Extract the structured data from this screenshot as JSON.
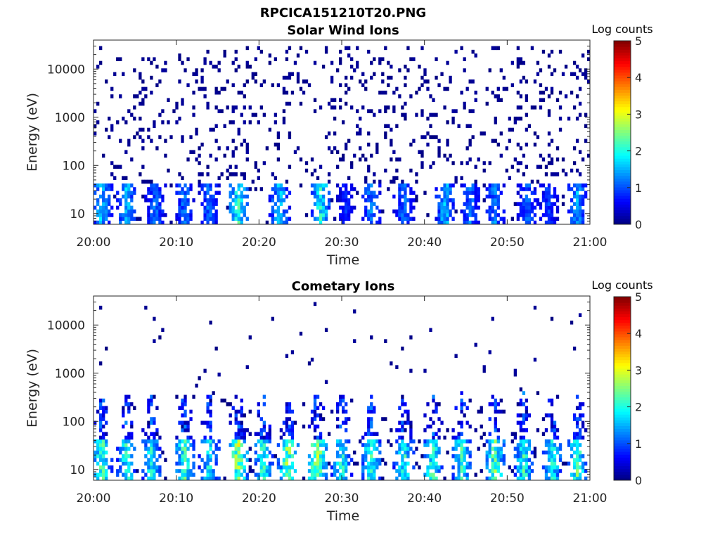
{
  "figure": {
    "title": "RPCICA151210T20.PNG"
  },
  "chart_data": [
    {
      "type": "heatmap",
      "title": "Solar Wind Ions",
      "xlabel": "Time",
      "ylabel": "Energy (eV)",
      "xlim": [
        "20:00",
        "21:00"
      ],
      "x_ticks": [
        "20:00",
        "20:10",
        "20:20",
        "20:30",
        "20:40",
        "20:50",
        "21:00"
      ],
      "y_scale": "log",
      "ylim": [
        6,
        40000
      ],
      "y_ticks": [
        "10",
        "100",
        "1000",
        "10000"
      ],
      "y_tick_values": [
        10,
        100,
        1000,
        10000
      ],
      "colorbar": {
        "label": "Log counts",
        "range": [
          0,
          5
        ],
        "ticks": [
          "0",
          "1",
          "2",
          "3",
          "4",
          "5"
        ],
        "colormap": "jet"
      },
      "grid": false,
      "description_of_data": "Sparse single-count (log 0) noise across 10 eV - 20 keV; recurring bursts below ~40 eV reaching log counts ~2-3.",
      "bursts": [
        {
          "t_min": 1.0,
          "peak": 2.0
        },
        {
          "t_min": 4.0,
          "peak": 2.0
        },
        {
          "t_min": 7.5,
          "peak": 1.5
        },
        {
          "t_min": 11.0,
          "peak": 1.5
        },
        {
          "t_min": 14.0,
          "peak": 1.5
        },
        {
          "t_min": 17.5,
          "peak": 2.6
        },
        {
          "t_min": 22.5,
          "peak": 2.0
        },
        {
          "t_min": 27.5,
          "peak": 2.5
        },
        {
          "t_min": 30.5,
          "peak": 1.0
        },
        {
          "t_min": 33.5,
          "peak": 1.6
        },
        {
          "t_min": 37.5,
          "peak": 1.5
        },
        {
          "t_min": 42.5,
          "peak": 2.0
        },
        {
          "t_min": 45.5,
          "peak": 1.5
        },
        {
          "t_min": 48.5,
          "peak": 1.6
        },
        {
          "t_min": 52.5,
          "peak": 1.4
        },
        {
          "t_min": 55.0,
          "peak": 1.2
        },
        {
          "t_min": 58.5,
          "peak": 1.8
        }
      ]
    },
    {
      "type": "heatmap",
      "title": "Cometary Ions",
      "xlabel": "Time",
      "ylabel": "Energy (eV)",
      "xlim": [
        "20:00",
        "21:00"
      ],
      "x_ticks": [
        "20:00",
        "20:10",
        "20:20",
        "20:30",
        "20:40",
        "20:50",
        "21:00"
      ],
      "y_scale": "log",
      "ylim": [
        6,
        40000
      ],
      "y_ticks": [
        "10",
        "100",
        "1000",
        "10000"
      ],
      "y_tick_values": [
        10,
        100,
        1000,
        10000
      ],
      "colorbar": {
        "label": "Log counts",
        "range": [
          0,
          5
        ],
        "ticks": [
          "0",
          "1",
          "2",
          "3",
          "4",
          "5"
        ],
        "colormap": "jet"
      },
      "grid": false,
      "description_of_data": "Intense bursts below ~40 eV (log counts ~2-3.5) with tails extending to a few hundred eV; sparse counts at higher energies.",
      "bursts": [
        {
          "t_min": 1.0,
          "peak": 2.8
        },
        {
          "t_min": 4.0,
          "peak": 2.5
        },
        {
          "t_min": 7.0,
          "peak": 2.4
        },
        {
          "t_min": 11.0,
          "peak": 2.8
        },
        {
          "t_min": 14.0,
          "peak": 2.4
        },
        {
          "t_min": 17.5,
          "peak": 3.4
        },
        {
          "t_min": 20.5,
          "peak": 2.6
        },
        {
          "t_min": 23.5,
          "peak": 3.2
        },
        {
          "t_min": 27.0,
          "peak": 3.5
        },
        {
          "t_min": 30.0,
          "peak": 2.5
        },
        {
          "t_min": 33.5,
          "peak": 2.6
        },
        {
          "t_min": 37.5,
          "peak": 2.6
        },
        {
          "t_min": 41.0,
          "peak": 2.8
        },
        {
          "t_min": 44.5,
          "peak": 2.6
        },
        {
          "t_min": 48.5,
          "peak": 3.0
        },
        {
          "t_min": 52.0,
          "peak": 2.6
        },
        {
          "t_min": 55.5,
          "peak": 2.4
        },
        {
          "t_min": 58.5,
          "peak": 2.8
        }
      ]
    }
  ]
}
